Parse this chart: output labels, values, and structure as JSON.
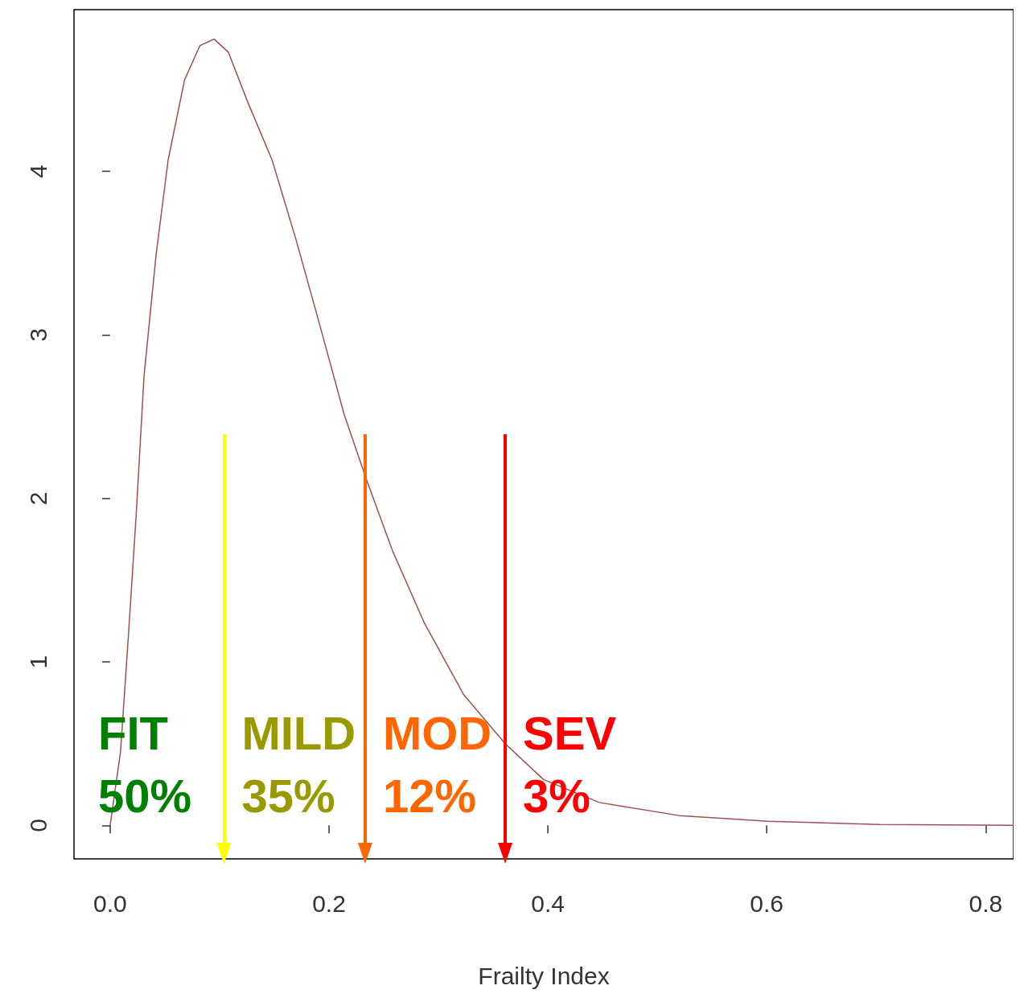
{
  "chart_data": {
    "type": "line",
    "xlabel": "Frailty Index",
    "x": [
      0,
      0.0095,
      0.017,
      0.024,
      0.031,
      0.042,
      0.053,
      0.068,
      0.082,
      0.095,
      0.108,
      0.126,
      0.148,
      0.17,
      0.192,
      0.214,
      0.234,
      0.258,
      0.287,
      0.323,
      0.361,
      0.396,
      0.447,
      0.52,
      0.601,
      0.703,
      0.8255
    ],
    "series": [
      {
        "color": "#a05050",
        "values": [
          0,
          0.45,
          1.19,
          1.92,
          2.75,
          3.49,
          4.07,
          4.56,
          4.77,
          4.81,
          4.73,
          4.42,
          4.07,
          3.58,
          3.05,
          2.51,
          2.12,
          1.68,
          1.24,
          0.8,
          0.5,
          0.28,
          0.14,
          0.06,
          0.025,
          0.005,
          0
        ]
      }
    ],
    "xlim": [
      -0.033,
      0.8255
    ],
    "ylim": [
      -0.205,
      4.99
    ],
    "xticks": [
      {
        "value": 0,
        "label": "0.0"
      },
      {
        "value": 0.2,
        "label": "0.2"
      },
      {
        "value": 0.4,
        "label": "0.4"
      },
      {
        "value": 0.6,
        "label": "0.6"
      },
      {
        "value": 0.8,
        "label": "0.8"
      }
    ],
    "yticks": [
      0,
      1,
      2,
      3,
      4
    ],
    "grid": false,
    "marker": "none",
    "line_style": "solid",
    "ref_lines": [
      {
        "axis": "x",
        "value": 0.104,
        "color": "#ffff00"
      },
      {
        "axis": "x",
        "value": 0.233,
        "color": "#ff6600"
      },
      {
        "axis": "x",
        "value": 0.361,
        "color": "#ff0000"
      }
    ],
    "annotations": [
      "FIT 50%",
      "MILD 35%",
      "MOD 12%",
      "SEV 3%"
    ]
  }
}
